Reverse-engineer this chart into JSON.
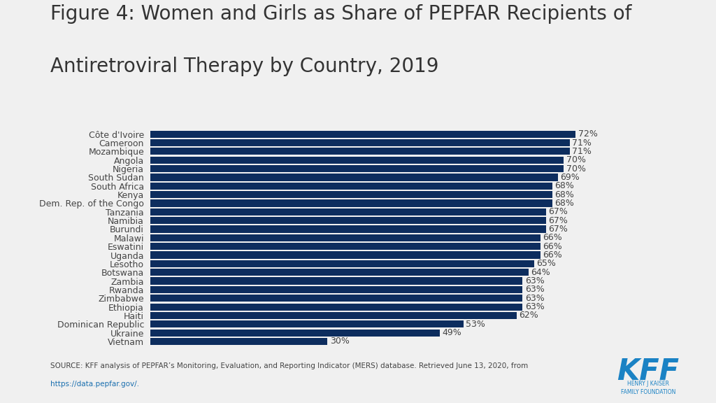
{
  "title_line1": "Figure 4: Women and Girls as Share of PEPFAR Recipients of",
  "title_line2": "Antiretroviral Therapy by Country, 2019",
  "categories": [
    "Vietnam",
    "Ukraine",
    "Dominican Republic",
    "Haiti",
    "Ethiopia",
    "Zimbabwe",
    "Rwanda",
    "Zambia",
    "Botswana",
    "Lesotho",
    "Uganda",
    "Eswatini",
    "Malawi",
    "Burundi",
    "Namibia",
    "Tanzania",
    "Dem. Rep. of the Congo",
    "Kenya",
    "South Africa",
    "South Sudan",
    "Nigeria",
    "Angola",
    "Mozambique",
    "Cameroon",
    "Côte d'Ivoire"
  ],
  "values": [
    30,
    49,
    53,
    62,
    63,
    63,
    63,
    63,
    64,
    65,
    66,
    66,
    66,
    67,
    67,
    67,
    68,
    68,
    68,
    69,
    70,
    70,
    71,
    71,
    72
  ],
  "bar_color": "#0d2d5e",
  "label_color": "#444444",
  "background_color": "#f0f0f0",
  "source_text": "SOURCE: KFF analysis of PEPFAR’s Monitoring, Evaluation, and Reporting Indicator (MERS) database. Retrieved June 13, 2020, from",
  "source_url": "https://data.pepfar.gov/.",
  "title_fontsize": 20,
  "label_fontsize": 9,
  "value_fontsize": 9
}
